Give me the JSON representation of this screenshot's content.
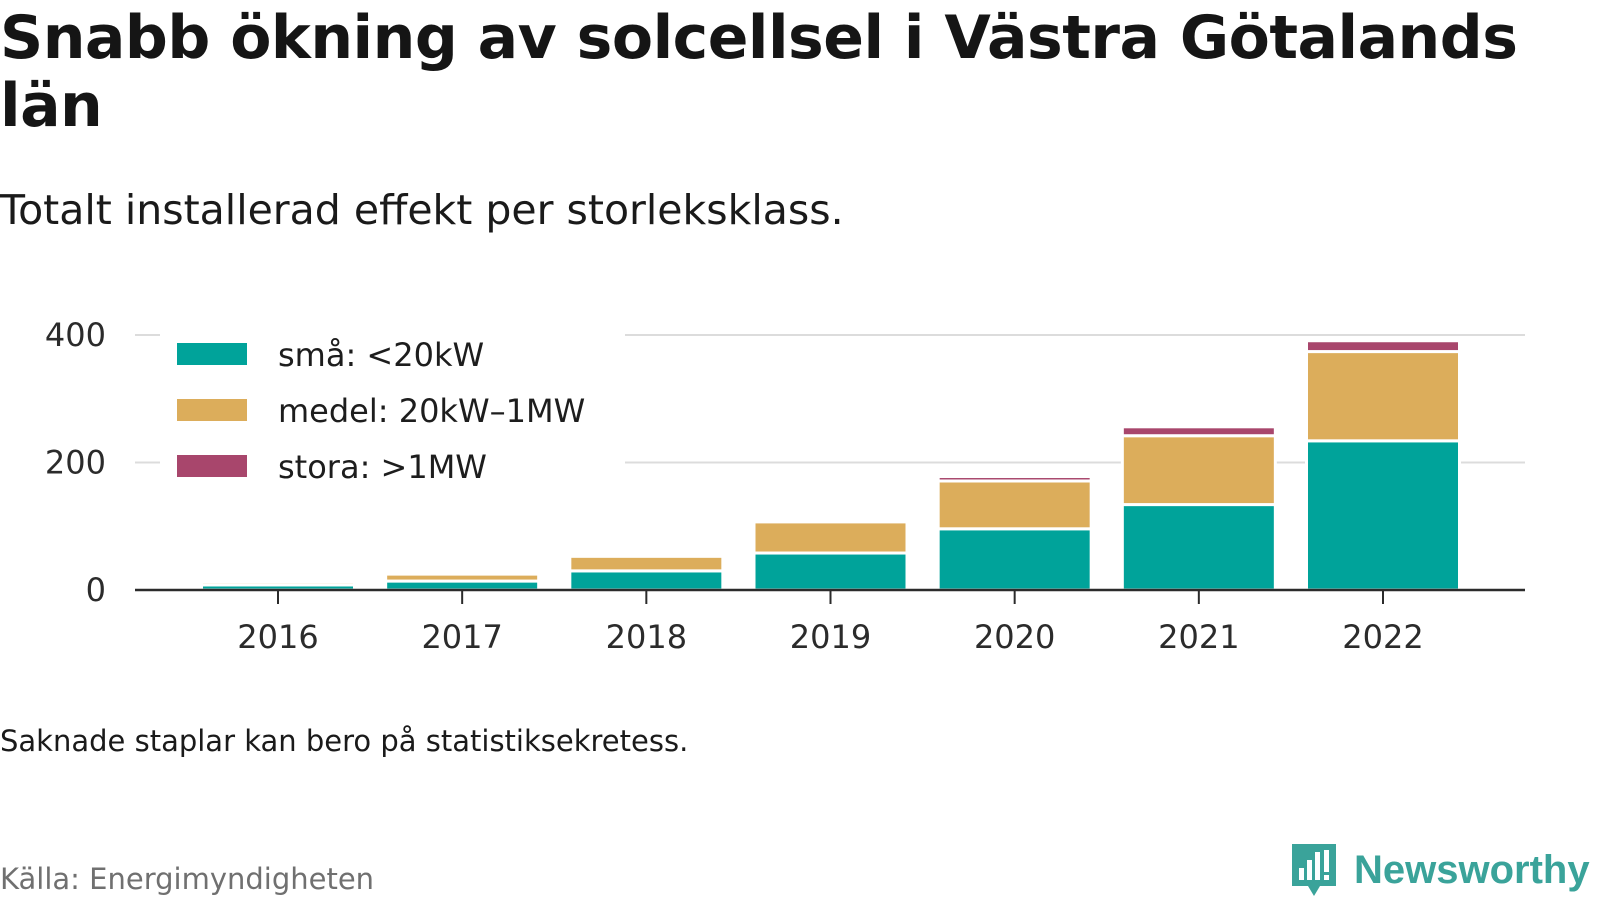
{
  "title": "Snabb ökning av solcellsel i Västra Götalands län",
  "subtitle": "Totalt installerad effekt per storleksklass.",
  "footnote": "Saknade staplar kan bero på statistiksekretess.",
  "source": "Källa: Energimyndigheten",
  "brand": "Newsworthy",
  "colors": {
    "small": "#00a39a",
    "medium": "#dcad5b",
    "large": "#a8466c",
    "brand": "#3aa39a"
  },
  "chart_data": {
    "type": "bar",
    "stacked": true,
    "categories": [
      "2016",
      "2017",
      "2018",
      "2019",
      "2020",
      "2021",
      "2022"
    ],
    "series": [
      {
        "name": "små: <20kW",
        "color": "#00a39a",
        "values": [
          8,
          14,
          30,
          58,
          96,
          134,
          234
        ]
      },
      {
        "name": "medel: 20kW–1MW",
        "color": "#dcad5b",
        "values": [
          5,
          11,
          23,
          49,
          75,
          108,
          140
        ]
      },
      {
        "name": "stora: >1MW",
        "color": "#a8466c",
        "values": [
          1,
          1,
          1,
          1,
          7,
          14,
          17
        ]
      }
    ],
    "yticks": [
      0,
      200,
      400
    ],
    "ylim": [
      0,
      400
    ],
    "grid": true,
    "legend_position": "top-left"
  }
}
